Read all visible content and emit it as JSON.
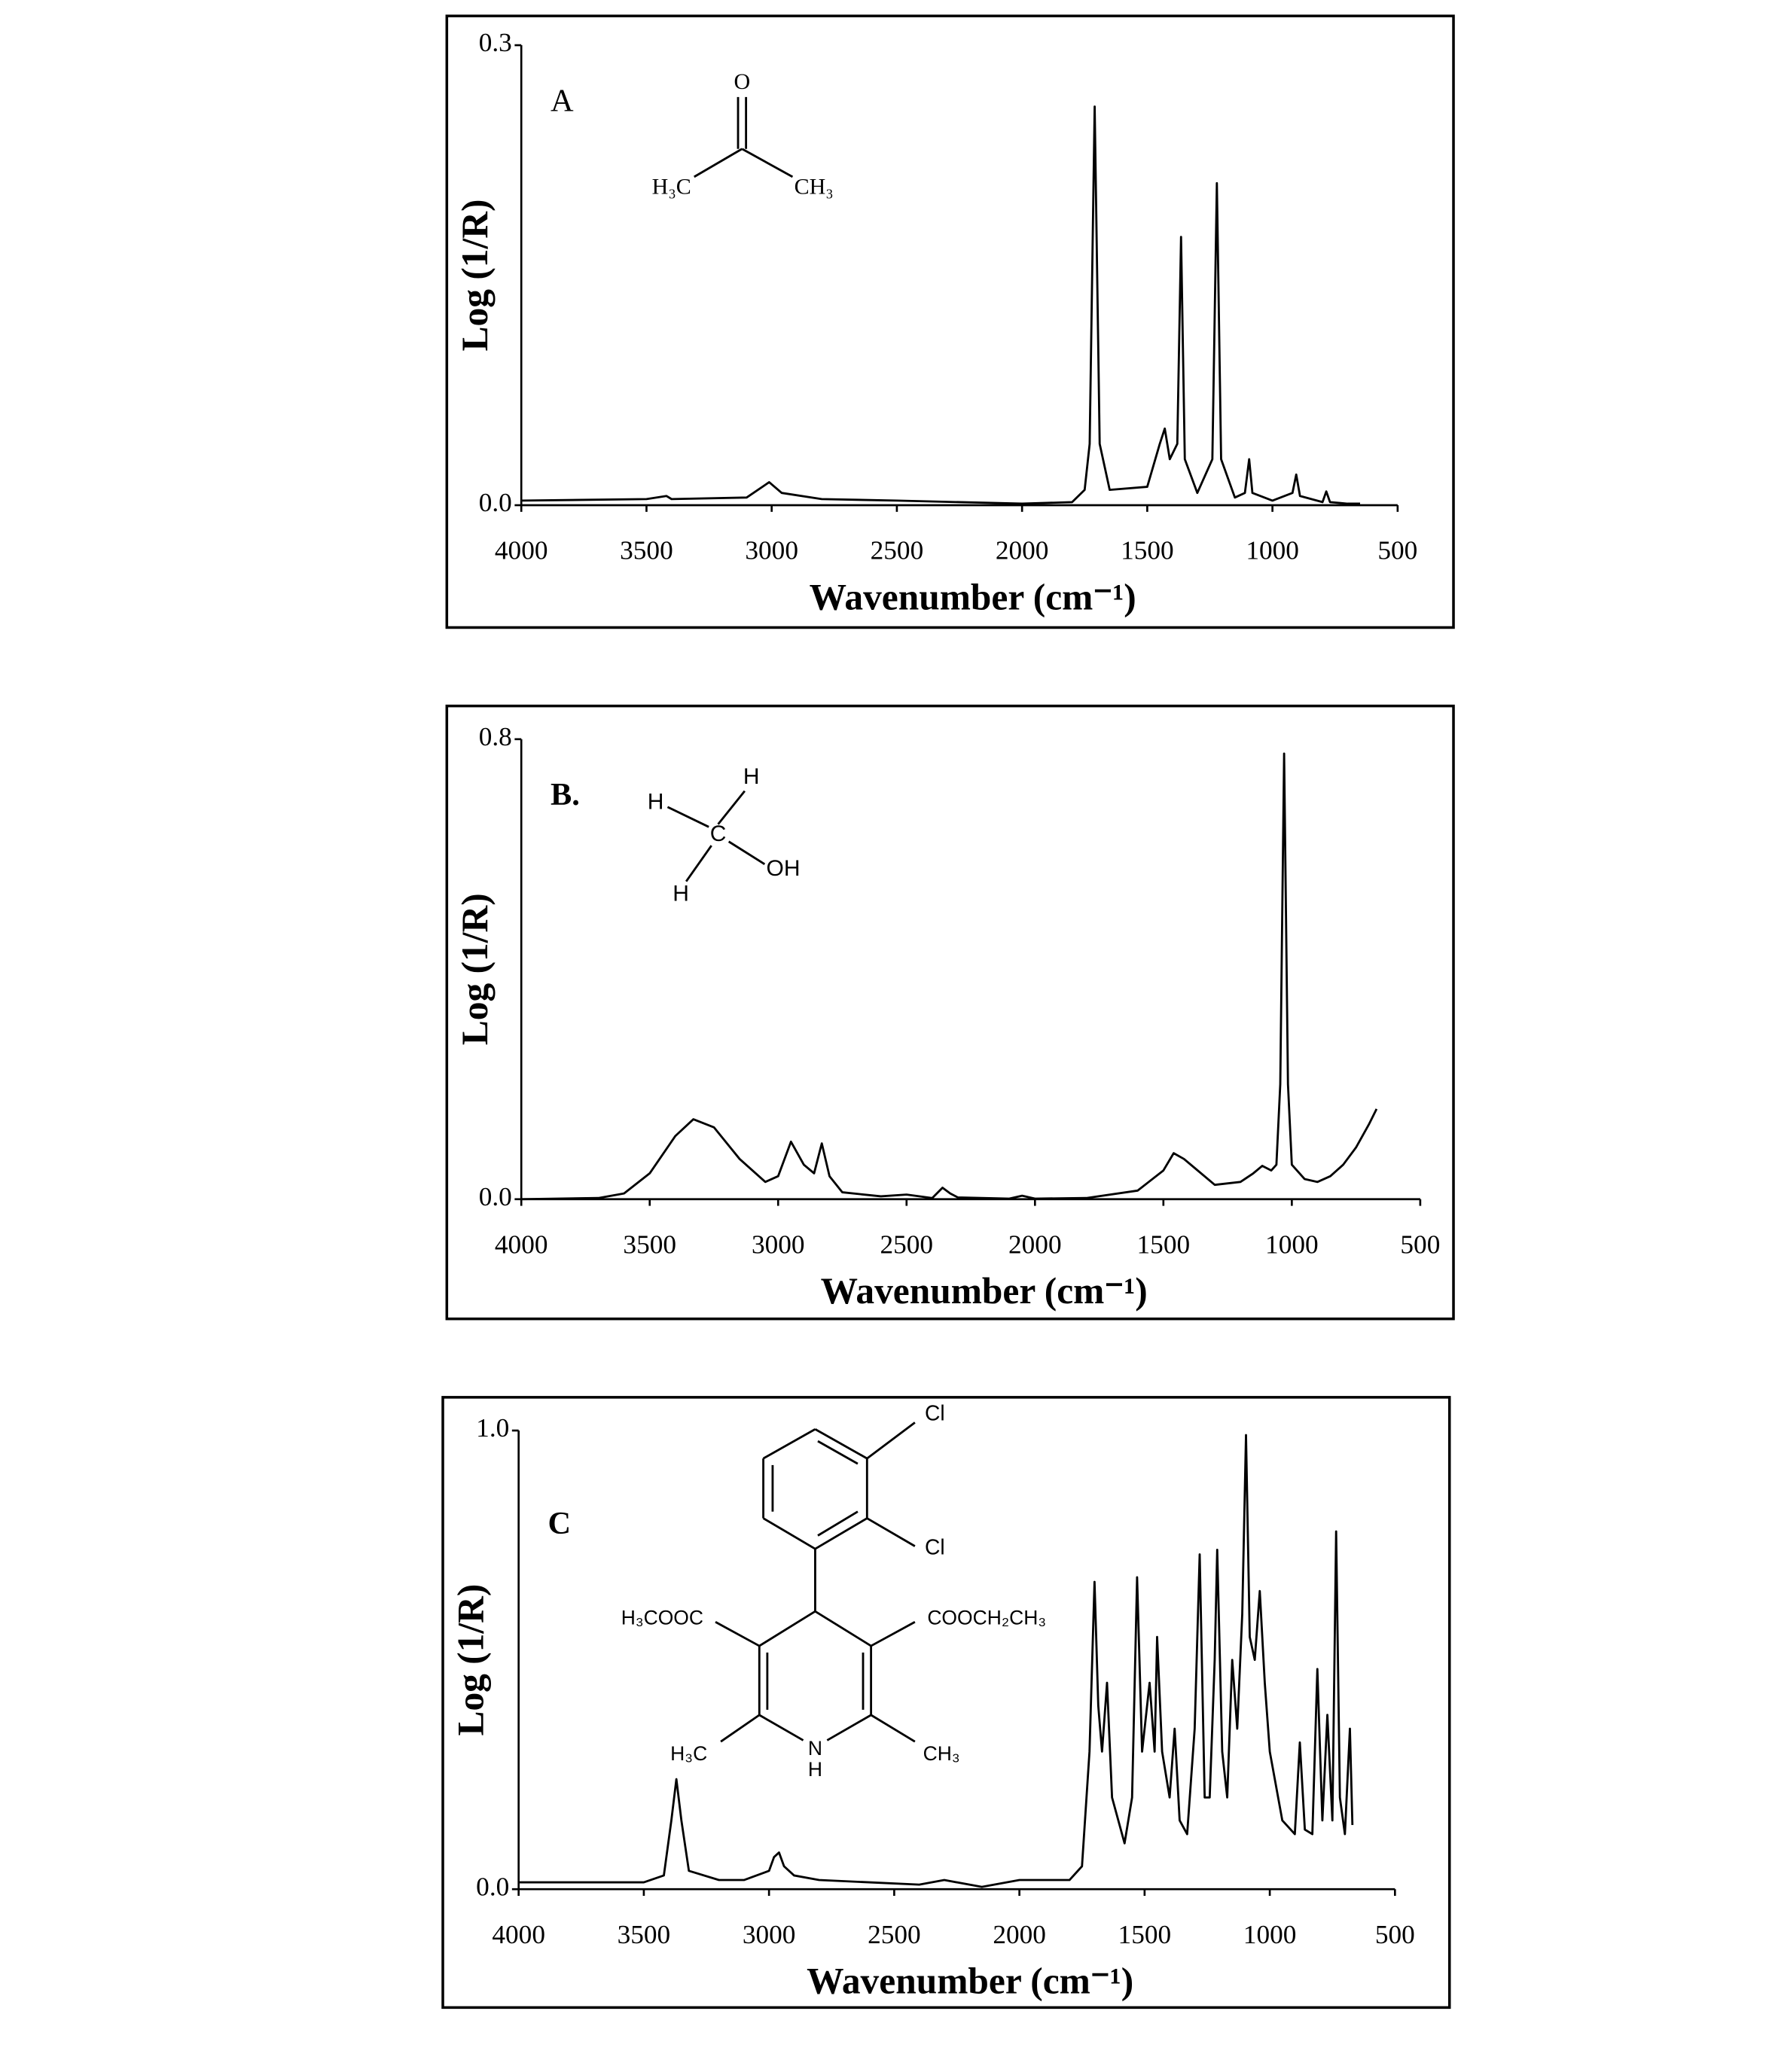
{
  "chart_data": [
    {
      "type": "line",
      "panel_label": "A",
      "xlabel": "Wavenumber (cm⁻¹)",
      "ylabel": "Log (1/R)",
      "structure_labels": [
        "O",
        "H₃C",
        "CH₃"
      ],
      "xlim": [
        4000,
        500
      ],
      "xticks": [
        4000,
        3500,
        3000,
        2500,
        2000,
        1500,
        1000,
        500
      ],
      "ylim": [
        0,
        0.3
      ],
      "yticks": [
        {
          "value": 0,
          "label": "0.0"
        },
        0.3
      ],
      "color": "#000000",
      "x": [
        4000,
        3500,
        3420,
        3400,
        3100,
        3010,
        2960,
        2800,
        2500,
        2000,
        1800,
        1750,
        1730,
        1710,
        1690,
        1650,
        1500,
        1450,
        1430,
        1410,
        1380,
        1365,
        1350,
        1300,
        1240,
        1222,
        1205,
        1150,
        1110,
        1093,
        1080,
        1000,
        920,
        905,
        890,
        800,
        785,
        770,
        700,
        650
      ],
      "values": [
        0.003,
        0.004,
        0.006,
        0.004,
        0.005,
        0.015,
        0.008,
        0.004,
        0.003,
        0.001,
        0.002,
        0.01,
        0.04,
        0.26,
        0.04,
        0.01,
        0.012,
        0.04,
        0.05,
        0.03,
        0.04,
        0.175,
        0.03,
        0.008,
        0.03,
        0.21,
        0.03,
        0.005,
        0.008,
        0.03,
        0.008,
        0.003,
        0.008,
        0.02,
        0.006,
        0.002,
        0.009,
        0.002,
        0.001,
        0.001
      ]
    },
    {
      "type": "line",
      "panel_label": "B.",
      "xlabel": "Wavenumber (cm⁻¹)",
      "ylabel": "Log (1/R)",
      "structure_labels": [
        "H",
        "H",
        "C",
        "OH",
        "H"
      ],
      "xlim": [
        4000,
        500
      ],
      "xticks": [
        4000,
        3500,
        3000,
        2500,
        2000,
        1500,
        1000,
        500
      ],
      "ylim": [
        0,
        0.8
      ],
      "yticks": [
        {
          "value": 0,
          "label": "0.0"
        },
        0.8
      ],
      "color": "#000000",
      "x": [
        4000,
        3700,
        3600,
        3500,
        3400,
        3330,
        3250,
        3150,
        3050,
        3000,
        2950,
        2900,
        2860,
        2830,
        2800,
        2750,
        2600,
        2500,
        2400,
        2360,
        2330,
        2300,
        2100,
        2050,
        2000,
        1800,
        1600,
        1500,
        1460,
        1420,
        1380,
        1300,
        1200,
        1150,
        1115,
        1080,
        1060,
        1045,
        1030,
        1015,
        1000,
        950,
        900,
        850,
        800,
        750,
        700,
        670
      ],
      "values": [
        0,
        0.002,
        0.01,
        0.045,
        0.11,
        0.139,
        0.125,
        0.07,
        0.03,
        0.04,
        0.1,
        0.06,
        0.045,
        0.097,
        0.04,
        0.012,
        0.005,
        0.008,
        0.002,
        0.02,
        0.01,
        0.003,
        0.001,
        0.006,
        0.001,
        0.002,
        0.015,
        0.05,
        0.08,
        0.07,
        0.055,
        0.025,
        0.03,
        0.045,
        0.058,
        0.05,
        0.06,
        0.2,
        0.775,
        0.2,
        0.06,
        0.035,
        0.03,
        0.04,
        0.06,
        0.09,
        0.13,
        0.157
      ]
    },
    {
      "type": "line",
      "panel_label": "C",
      "xlabel": "Wavenumber (cm⁻¹)",
      "ylabel": "Log (1/R)",
      "structure_labels": [
        "Cl",
        "Cl",
        "H₃COOC",
        "COOCH₂CH₃",
        "H₃C",
        "CH₃",
        "N",
        "H"
      ],
      "xlim": [
        4000,
        500
      ],
      "xticks": [
        4000,
        3500,
        3000,
        2500,
        2000,
        1500,
        1000,
        500
      ],
      "ylim": [
        0,
        1
      ],
      "yticks": [
        {
          "value": 0,
          "label": "0.0"
        },
        {
          "value": 1,
          "label": "1.0"
        }
      ],
      "color": "#000000",
      "x": [
        4000,
        3500,
        3420,
        3390,
        3370,
        3350,
        3320,
        3200,
        3100,
        3000,
        2980,
        2960,
        2940,
        2900,
        2800,
        2600,
        2400,
        2300,
        2150,
        2000,
        1800,
        1750,
        1720,
        1700,
        1685,
        1670,
        1650,
        1630,
        1580,
        1550,
        1530,
        1510,
        1480,
        1460,
        1450,
        1430,
        1400,
        1380,
        1360,
        1330,
        1300,
        1280,
        1260,
        1240,
        1220,
        1210,
        1190,
        1170,
        1150,
        1130,
        1110,
        1095,
        1080,
        1060,
        1040,
        1020,
        1000,
        950,
        900,
        880,
        860,
        830,
        810,
        790,
        770,
        750,
        735,
        720,
        700,
        680,
        670
      ],
      "values": [
        0.015,
        0.015,
        0.03,
        0.15,
        0.24,
        0.15,
        0.04,
        0.02,
        0.02,
        0.04,
        0.07,
        0.08,
        0.05,
        0.03,
        0.02,
        0.015,
        0.01,
        0.02,
        0.005,
        0.02,
        0.02,
        0.05,
        0.3,
        0.67,
        0.4,
        0.3,
        0.45,
        0.2,
        0.1,
        0.2,
        0.68,
        0.3,
        0.45,
        0.3,
        0.55,
        0.3,
        0.2,
        0.35,
        0.15,
        0.12,
        0.35,
        0.73,
        0.2,
        0.2,
        0.5,
        0.74,
        0.3,
        0.2,
        0.5,
        0.35,
        0.6,
        0.99,
        0.55,
        0.5,
        0.65,
        0.45,
        0.3,
        0.15,
        0.12,
        0.32,
        0.13,
        0.12,
        0.48,
        0.15,
        0.38,
        0.15,
        0.78,
        0.2,
        0.12,
        0.35,
        0.14
      ]
    }
  ]
}
